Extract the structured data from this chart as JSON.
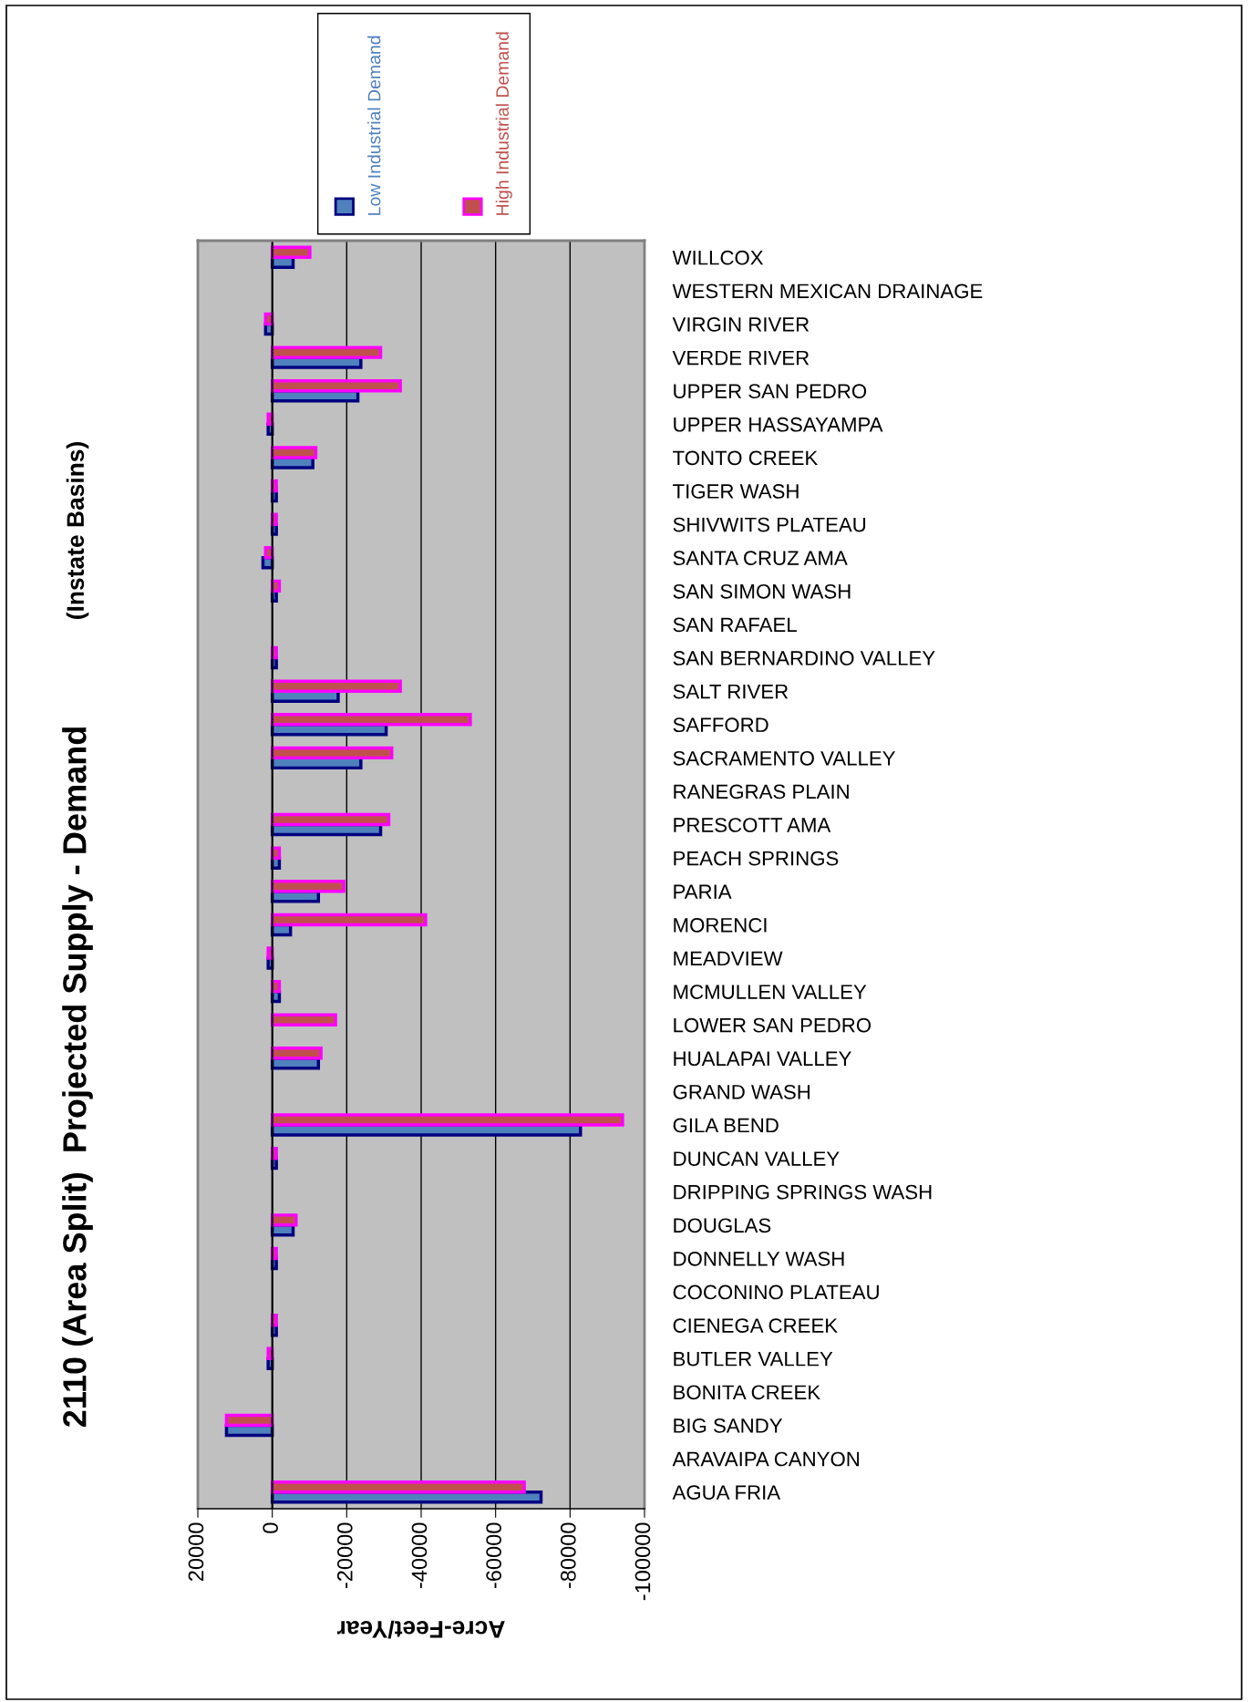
{
  "chart_data": {
    "type": "bar",
    "orientation": "horizontal",
    "title": "2110 (Area Split)  Projected Supply - Demand",
    "subtitle": "(Instate Basins)",
    "xlabel": "Acre-Feet/Year",
    "categories": [
      "WILLCOX",
      "WESTERN MEXICAN DRAINAGE",
      "VIRGIN RIVER",
      "VERDE RIVER",
      "UPPER SAN PEDRO",
      "UPPER HASSAYAMPA",
      "TONTO CREEK",
      "TIGER WASH",
      "SHIVWITS PLATEAU",
      "SANTA CRUZ AMA",
      "SAN SIMON WASH",
      "SAN RAFAEL",
      "SAN BERNARDINO VALLEY",
      "SALT RIVER",
      "SAFFORD",
      "SACRAMENTO VALLEY",
      "RANEGRAS PLAIN",
      "PRESCOTT AMA",
      "PEACH SPRINGS",
      "PARIA",
      "MORENCI",
      "MEADVIEW",
      "MCMULLEN VALLEY",
      "LOWER SAN PEDRO",
      "HUALAPAI VALLEY",
      "GRAND WASH",
      "GILA BEND",
      "DUNCAN VALLEY",
      "DRIPPING SPRINGS WASH",
      "DOUGLAS",
      "DONNELLY WASH",
      "COCONINO PLATEAU",
      "CIENEGA CREEK",
      "BUTLER VALLEY",
      "BONITA CREEK",
      "BIG SANDY",
      "ARAVAIPA CANYON",
      "AGUA FRIA"
    ],
    "series": [
      {
        "name": "Low Industrial Demand",
        "color": "#4f81bd",
        "values": [
          -5600,
          null,
          1800,
          -23800,
          -23000,
          1100,
          -10900,
          -1100,
          -1100,
          2500,
          -1100,
          null,
          -1100,
          -17700,
          -30600,
          -23800,
          null,
          -29100,
          -1900,
          -12400,
          -4900,
          1100,
          -1900,
          null,
          -12400,
          null,
          -82800,
          -1100,
          null,
          -5600,
          -1100,
          null,
          -1100,
          1100,
          null,
          12300,
          null,
          -72200
        ]
      },
      {
        "name": "High Industrial Demand",
        "color": "#c0504d",
        "values": [
          -10100,
          null,
          1800,
          -29100,
          -34400,
          1100,
          -11700,
          -1100,
          -1100,
          1800,
          -1900,
          null,
          -1100,
          -34400,
          -53200,
          -32100,
          null,
          -31300,
          -1900,
          -19200,
          -41200,
          1100,
          -1900,
          -17000,
          -13100,
          null,
          -94100,
          -1100,
          null,
          -6400,
          -1100,
          null,
          -1100,
          1100,
          null,
          12300,
          null,
          -67700
        ]
      }
    ],
    "xlim": [
      20000,
      -100000
    ],
    "xticks": [
      20000,
      0,
      -20000,
      -40000,
      -60000,
      -80000,
      -100000
    ],
    "grid": "x",
    "legend": "top"
  }
}
